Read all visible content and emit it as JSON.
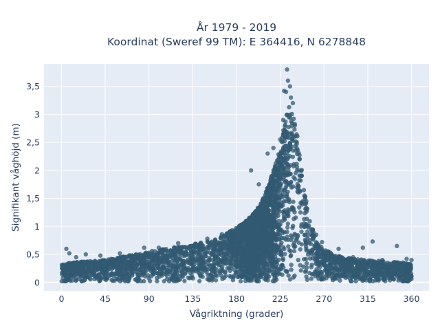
{
  "chart_data": {
    "type": "scatter",
    "title_line1": "År 1979 - 2019",
    "title_line2": "Koordinat (Sweref 99 TM): E 364416, N 6278848",
    "xlabel": "Vågriktning (grader)",
    "ylabel": "Signifikant våghöjd (m)",
    "xlim": [
      -18,
      378
    ],
    "ylim": [
      -0.15,
      3.9
    ],
    "x_ticks": [
      0,
      45,
      90,
      135,
      180,
      225,
      270,
      315,
      360
    ],
    "x_tick_labels": [
      "0",
      "45",
      "90",
      "135",
      "180",
      "225",
      "270",
      "315",
      "360"
    ],
    "y_ticks": [
      0,
      0.5,
      1,
      1.5,
      2,
      2.5,
      3,
      3.5
    ],
    "y_tick_labels": [
      "0",
      "0,5",
      "1",
      "1,5",
      "2",
      "2,5",
      "3",
      "3,5"
    ],
    "grid": true,
    "legend": "none",
    "marker_color": "#325a72",
    "plot_background": "#e5ecf6",
    "envelope": {
      "x": [
        0,
        10,
        20,
        30,
        45,
        60,
        75,
        90,
        105,
        120,
        135,
        150,
        160,
        170,
        180,
        190,
        200,
        205,
        210,
        215,
        220,
        225,
        228,
        230,
        232,
        235,
        237,
        240,
        243,
        245,
        248,
        250,
        255,
        260,
        265,
        270,
        280,
        290,
        300,
        315,
        330,
        345,
        360
      ],
      "max_y": [
        0.32,
        0.35,
        0.37,
        0.38,
        0.4,
        0.45,
        0.5,
        0.55,
        0.6,
        0.64,
        0.68,
        0.74,
        0.8,
        0.88,
        0.98,
        1.1,
        1.28,
        1.42,
        1.6,
        1.85,
        2.1,
        2.45,
        2.7,
        2.9,
        3.1,
        3.3,
        3.1,
        2.9,
        2.6,
        2.3,
        1.9,
        1.6,
        1.2,
        0.85,
        0.7,
        0.6,
        0.5,
        0.45,
        0.42,
        0.4,
        0.38,
        0.36,
        0.35
      ]
    },
    "outliers": [
      [
        5,
        0.6
      ],
      [
        8,
        0.52
      ],
      [
        15,
        0.45
      ],
      [
        25,
        0.5
      ],
      [
        40,
        0.48
      ],
      [
        60,
        0.52
      ],
      [
        85,
        0.62
      ],
      [
        100,
        0.62
      ],
      [
        120,
        0.7
      ],
      [
        150,
        0.78
      ],
      [
        165,
        0.86
      ],
      [
        195,
        2.0
      ],
      [
        203,
        1.75
      ],
      [
        212,
        2.3
      ],
      [
        218,
        2.4
      ],
      [
        225,
        2.55
      ],
      [
        228,
        2.9
      ],
      [
        229,
        3.42
      ],
      [
        231,
        3.4
      ],
      [
        232,
        3.8
      ],
      [
        233,
        3.6
      ],
      [
        235,
        3.5
      ],
      [
        236,
        3.3
      ],
      [
        238,
        3.2
      ],
      [
        240,
        2.8
      ],
      [
        242,
        2.5
      ],
      [
        245,
        2.2
      ],
      [
        247,
        1.9
      ],
      [
        250,
        1.55
      ],
      [
        252,
        1.3
      ],
      [
        258,
        0.9
      ],
      [
        262,
        0.85
      ],
      [
        268,
        0.72
      ],
      [
        285,
        0.6
      ],
      [
        300,
        0.45
      ],
      [
        310,
        0.62
      ],
      [
        320,
        0.73
      ],
      [
        330,
        0.4
      ],
      [
        345,
        0.65
      ],
      [
        355,
        0.42
      ],
      [
        360,
        0.4
      ]
    ]
  }
}
